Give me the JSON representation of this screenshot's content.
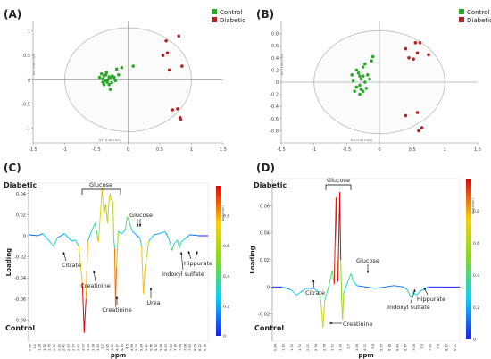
{
  "panels": {
    "A": {
      "label": "(A)"
    },
    "B": {
      "label": "(B)"
    },
    "C": {
      "label": "(C)"
    },
    "D": {
      "label": "(D)"
    }
  },
  "legend": {
    "control": "Control",
    "diabetic": "Diabetic"
  },
  "colors": {
    "control": "#2aa82a",
    "diabetic": "#b22222",
    "ellipse": "#bbbbbb",
    "axis": "#888888"
  },
  "chart_data": [
    {
      "type": "scatter",
      "panel": "A",
      "xlabel": "t[1] (1.00 x t[1])",
      "ylabel": "t[2] (1.00 x t[2])",
      "xlim": [
        -1.5,
        1.5
      ],
      "ylim": [
        -1.3,
        1.2
      ],
      "xticks": [
        -1.5,
        -1,
        -0.5,
        0,
        0.5,
        1,
        1.5
      ],
      "yticks": [
        -1,
        -0.5,
        0,
        0.5,
        1
      ],
      "xtick_labels": [
        "-1.5",
        "-1",
        "-0.5",
        "0",
        "0.5",
        "1",
        "1.5"
      ],
      "ytick_labels": [
        "-1",
        "-0.5",
        "0",
        "0.5",
        "1"
      ],
      "legend_position": "top-right",
      "series": [
        {
          "name": "Control",
          "points": [
            [
              -0.42,
              0.12
            ],
            [
              -0.38,
              0.08
            ],
            [
              -0.35,
              0.1
            ],
            [
              -0.3,
              0.06
            ],
            [
              -0.4,
              0.02
            ],
            [
              -0.36,
              -0.02
            ],
            [
              -0.32,
              0.0
            ],
            [
              -0.28,
              0.04
            ],
            [
              -0.25,
              0.08
            ],
            [
              -0.22,
              0.05
            ],
            [
              -0.33,
              -0.05
            ],
            [
              -0.38,
              -0.1
            ],
            [
              -0.3,
              -0.1
            ],
            [
              -0.26,
              -0.06
            ],
            [
              -0.2,
              -0.02
            ],
            [
              -0.45,
              0.05
            ],
            [
              -0.15,
              0.1
            ],
            [
              -0.34,
              0.15
            ],
            [
              -0.28,
              -0.2
            ],
            [
              -0.1,
              0.25
            ],
            [
              0.08,
              0.28
            ],
            [
              -0.18,
              0.22
            ],
            [
              -0.4,
              -0.05
            ]
          ]
        },
        {
          "name": "Diabetic",
          "points": [
            [
              0.8,
              0.9
            ],
            [
              0.6,
              0.8
            ],
            [
              0.62,
              0.55
            ],
            [
              0.65,
              0.2
            ],
            [
              0.85,
              0.28
            ],
            [
              0.78,
              -0.6
            ],
            [
              0.7,
              -0.62
            ],
            [
              0.82,
              -0.78
            ],
            [
              0.83,
              -0.82
            ],
            [
              0.55,
              0.5
            ]
          ]
        }
      ]
    },
    {
      "type": "scatter",
      "panel": "B",
      "xlabel": "t[1] (1.00 x t[1])",
      "ylabel": "t[2] (1.00 x t[2])",
      "xlim": [
        -1.5,
        1.5
      ],
      "ylim": [
        -1.0,
        1.0
      ],
      "xticks": [
        -1.5,
        -1,
        -0.5,
        0,
        0.5,
        1,
        1.5
      ],
      "yticks": [
        -0.8,
        -0.6,
        -0.4,
        -0.2,
        0,
        0.2,
        0.4,
        0.6,
        0.8
      ],
      "xtick_labels": [
        "-1.5",
        "-1",
        "-0.5",
        "0",
        "0.5",
        "1",
        "1.5"
      ],
      "ytick_labels": [
        "-0.8",
        "-0.6",
        "-0.4",
        "-0.2",
        "0",
        "0.2",
        "0.4",
        "0.6",
        "0.8"
      ],
      "legend_position": "top-right",
      "series": [
        {
          "name": "Control",
          "points": [
            [
              -0.35,
              0.2
            ],
            [
              -0.32,
              0.15
            ],
            [
              -0.3,
              0.1
            ],
            [
              -0.28,
              0.05
            ],
            [
              -0.25,
              0.1
            ],
            [
              -0.22,
              0.0
            ],
            [
              -0.3,
              -0.05
            ],
            [
              -0.35,
              -0.08
            ],
            [
              -0.28,
              -0.12
            ],
            [
              -0.25,
              -0.15
            ],
            [
              -0.2,
              -0.1
            ],
            [
              -0.4,
              0.02
            ],
            [
              -0.38,
              -0.15
            ],
            [
              -0.18,
              0.12
            ],
            [
              -0.15,
              0.05
            ],
            [
              -0.25,
              0.25
            ],
            [
              -0.22,
              0.3
            ],
            [
              -0.12,
              0.35
            ],
            [
              -0.1,
              0.42
            ],
            [
              -0.3,
              -0.2
            ],
            [
              -0.42,
              0.12
            ]
          ]
        },
        {
          "name": "Diabetic",
          "points": [
            [
              0.55,
              0.65
            ],
            [
              0.62,
              0.65
            ],
            [
              0.4,
              0.55
            ],
            [
              0.58,
              0.48
            ],
            [
              0.75,
              0.45
            ],
            [
              0.45,
              0.4
            ],
            [
              0.52,
              0.38
            ],
            [
              0.4,
              -0.55
            ],
            [
              0.58,
              -0.5
            ],
            [
              0.65,
              -0.75
            ],
            [
              0.6,
              -0.8
            ]
          ]
        }
      ]
    },
    {
      "type": "line",
      "panel": "C",
      "xlabel": "ppm",
      "ylabel": "Loading",
      "colorbar_label": "abs(pcorr)",
      "ylim": [
        -0.1,
        0.05
      ],
      "yticks": [
        0.04,
        0.02,
        0,
        -0.02,
        -0.04,
        -0.06,
        -0.08
      ],
      "ytick_labels": [
        "0.04",
        "0.02",
        "0",
        "-0.02",
        "-0.04",
        "-0.06",
        "-0.08"
      ],
      "colorbar_ticks": [
        "0.8",
        "0.6",
        "0.4",
        "0.2",
        "0"
      ],
      "xtick_labels": [
        "0.88",
        "1.1",
        "1.36",
        "1.52",
        "1.75",
        "2.02",
        "2.23",
        "2.41",
        "2.57",
        "2.77",
        "2.92",
        "3.07",
        "3.23",
        "3.38",
        "3.53",
        "3.7",
        "3.85",
        "4.02",
        "4.17",
        "4.33",
        "4.5",
        "4.65",
        "5.05",
        "5.24",
        "5.41",
        "5.56",
        "5.72",
        "5.88",
        "6.63",
        "7.22",
        "7.39",
        "7.55",
        "7.68",
        "7.83",
        "8.05",
        "8.22",
        "8.38"
      ],
      "group_top": "Diabetic",
      "group_bottom": "Control",
      "bracket_label": "Glucose",
      "annotations": [
        "Glucose",
        "Citrate",
        "Hippurate",
        "Indoxyl sulfate",
        "Urea",
        "Creatinine",
        "Creatinine"
      ],
      "curve": [
        [
          0,
          0.001
        ],
        [
          0.05,
          0.0
        ],
        [
          0.08,
          0.002
        ],
        [
          0.12,
          -0.006
        ],
        [
          0.14,
          -0.01
        ],
        [
          0.16,
          -0.002
        ],
        [
          0.2,
          0.002
        ],
        [
          0.24,
          -0.005
        ],
        [
          0.26,
          -0.004
        ],
        [
          0.28,
          -0.01
        ],
        [
          0.3,
          -0.045
        ],
        [
          0.31,
          -0.092
        ],
        [
          0.32,
          -0.06
        ],
        [
          0.33,
          -0.005
        ],
        [
          0.35,
          0.004
        ],
        [
          0.37,
          0.012
        ],
        [
          0.39,
          -0.006
        ],
        [
          0.41,
          0.046
        ],
        [
          0.42,
          0.02
        ],
        [
          0.43,
          0.03
        ],
        [
          0.44,
          0.012
        ],
        [
          0.45,
          0.036
        ],
        [
          0.455,
          0.04
        ],
        [
          0.46,
          0.035
        ],
        [
          0.47,
          0.032
        ],
        [
          0.475,
          -0.003
        ],
        [
          0.48,
          -0.012
        ],
        [
          0.485,
          -0.068
        ],
        [
          0.49,
          -0.03
        ],
        [
          0.5,
          0.004
        ],
        [
          0.52,
          0.002
        ],
        [
          0.54,
          0.006
        ],
        [
          0.55,
          0.018
        ],
        [
          0.56,
          0.014
        ],
        [
          0.57,
          0.008
        ],
        [
          0.58,
          0.004
        ],
        [
          0.6,
          0.001
        ],
        [
          0.62,
          -0.002
        ],
        [
          0.63,
          -0.01
        ],
        [
          0.64,
          -0.055
        ],
        [
          0.65,
          -0.03
        ],
        [
          0.67,
          -0.005
        ],
        [
          0.7,
          0.001
        ],
        [
          0.73,
          0.002
        ],
        [
          0.76,
          0.004
        ],
        [
          0.78,
          -0.002
        ],
        [
          0.79,
          -0.008
        ],
        [
          0.8,
          -0.014
        ],
        [
          0.81,
          -0.008
        ],
        [
          0.83,
          -0.004
        ],
        [
          0.84,
          -0.012
        ],
        [
          0.85,
          -0.006
        ],
        [
          0.87,
          -0.003
        ],
        [
          0.9,
          0.001
        ],
        [
          0.95,
          0.0
        ],
        [
          1.0,
          0.0
        ]
      ]
    },
    {
      "type": "line",
      "panel": "D",
      "xlabel": "ppm",
      "ylabel": "Loading",
      "colorbar_label": "abs(pcorr)",
      "ylim": [
        -0.04,
        0.08
      ],
      "yticks": [
        0.06,
        0.04,
        0.02,
        0,
        -0.02
      ],
      "ytick_labels": [
        "0.06",
        "0.04",
        "0.02",
        "0",
        "-0.02"
      ],
      "colorbar_ticks": [
        "0.8",
        "0.6",
        "0.4",
        "0.2",
        "0"
      ],
      "xtick_labels": [
        "0.84",
        "1.13",
        "1.30",
        "1.72",
        "2.01",
        "2.34",
        "2.78",
        "3.10",
        "3.39",
        "3.7",
        "3.95",
        "4.31",
        "5.4",
        "5.77",
        "6.15",
        "6.43",
        "6.77",
        "7.06",
        "7.3",
        "7.55",
        "7.9",
        "8.17",
        "8.51"
      ],
      "group_top": "Diabetic",
      "group_bottom": "Control",
      "bracket_label": "Glucose",
      "annotations": [
        "Glucose",
        "Citrate",
        "Creatinine",
        "Hippurate",
        "Indoxyl sulfate"
      ],
      "curve": [
        [
          0,
          0.0
        ],
        [
          0.05,
          0.0
        ],
        [
          0.1,
          -0.002
        ],
        [
          0.13,
          -0.006
        ],
        [
          0.15,
          -0.004
        ],
        [
          0.18,
          -0.001
        ],
        [
          0.22,
          -0.001
        ],
        [
          0.25,
          -0.004
        ],
        [
          0.26,
          -0.012
        ],
        [
          0.27,
          -0.03
        ],
        [
          0.28,
          -0.01
        ],
        [
          0.3,
          0.0
        ],
        [
          0.32,
          0.012
        ],
        [
          0.33,
          0.002
        ],
        [
          0.34,
          0.066
        ],
        [
          0.345,
          0.03
        ],
        [
          0.35,
          0.004
        ],
        [
          0.36,
          0.07
        ],
        [
          0.365,
          0.02
        ],
        [
          0.37,
          -0.01
        ],
        [
          0.375,
          -0.024
        ],
        [
          0.38,
          -0.005
        ],
        [
          0.4,
          0.003
        ],
        [
          0.42,
          0.01
        ],
        [
          0.43,
          0.005
        ],
        [
          0.45,
          0.001
        ],
        [
          0.5,
          0.0
        ],
        [
          0.55,
          -0.001
        ],
        [
          0.6,
          0.0
        ],
        [
          0.65,
          0.001
        ],
        [
          0.7,
          0.0
        ],
        [
          0.72,
          -0.002
        ],
        [
          0.74,
          -0.008
        ],
        [
          0.75,
          -0.004
        ],
        [
          0.77,
          -0.006
        ],
        [
          0.79,
          -0.003
        ],
        [
          0.83,
          0.0
        ],
        [
          0.9,
          0.0
        ],
        [
          1.0,
          0.0
        ]
      ]
    }
  ]
}
